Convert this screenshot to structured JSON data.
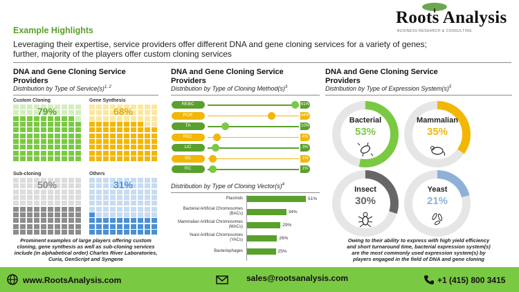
{
  "header": {
    "section_title": "Example Highlights",
    "subtitle_line1": "Leveraging their expertise, service providers offer different DNA and gene cloning services for a variety of genes;",
    "subtitle_line2": "further, majority of the players offer custom cloning services"
  },
  "logo": {
    "name": "Roots Analysis",
    "tagline": "BUSINESS RESEARCH & CONSULTING"
  },
  "panels": {
    "services": {
      "title_line1": "DNA and Gene Cloning Service",
      "title_line2": "Providers",
      "subtitle": "Distribution by Type of Service(s)",
      "sup": "1, 2",
      "items": [
        {
          "label": "Custom Cloning",
          "pct": "79%",
          "fraction": 0.79,
          "color": "#7ac943",
          "light": "#d4edc0",
          "text": "#5aa02c"
        },
        {
          "label": "Gene Synthesis",
          "pct": "68%",
          "fraction": 0.68,
          "color": "#f2b705",
          "light": "#fbe7a3",
          "text": "#e0a800"
        },
        {
          "label": "Sub-cloning",
          "pct": "50%",
          "fraction": 0.5,
          "color": "#8c8c8c",
          "light": "#dcdcdc",
          "text": "#888888"
        },
        {
          "label": "Others",
          "pct": "31%",
          "fraction": 0.31,
          "color": "#4a8fd4",
          "light": "#c7dcf2",
          "text": "#4a8fd4"
        }
      ],
      "note_line1": "Prominent examples of large players offering custom",
      "note_line2": "cloning, gene synthesis  as well as sub-cloning services",
      "note_line3": "include (in alphabetical order) Charles River Laboratories,",
      "note_line4": "Curia, GenScript  and Syngene"
    },
    "methods": {
      "title_line1": "DNA and Gene Cloning Service",
      "title_line2": "Providers",
      "subtitle": "Distribution by Type of Cloning Method(s)",
      "sup": "3",
      "rows": [
        {
          "label": "REBC",
          "value": "61%",
          "fraction": 0.61,
          "dot": "#7ac943"
        },
        {
          "label": "PCR",
          "value": "44%",
          "fraction": 0.44,
          "dot": "#f2b705"
        },
        {
          "label": "TA",
          "value": "10%",
          "fraction": 0.1,
          "dot": "#7ac943"
        },
        {
          "label": "REC",
          "value": "4%",
          "fraction": 0.04,
          "dot": "#f2b705"
        },
        {
          "label": "LIC",
          "value": "3%",
          "fraction": 0.03,
          "dot": "#7ac943"
        },
        {
          "label": "SC",
          "value": "1%",
          "fraction": 0.01,
          "dot": "#f2b705"
        },
        {
          "label": "RC",
          "value": "1%",
          "fraction": 0.01,
          "dot": "#7ac943"
        }
      ]
    },
    "vectors": {
      "subtitle": "Distribution by Type of Cloning Vector(s)",
      "sup": "4",
      "rows": [
        {
          "label1": "Plasmids",
          "label2": "",
          "value": "51%",
          "fraction": 0.51
        },
        {
          "label1": "Bacterial Artificial Chromosomes",
          "label2": "(BACs)",
          "value": "34%",
          "fraction": 0.34
        },
        {
          "label1": "Mammalian Artificial Chromosomes",
          "label2": "(MACs)",
          "value": "29%",
          "fraction": 0.29
        },
        {
          "label1": "Yeast Artificial Chromosomes",
          "label2": "(YACs)",
          "value": "26%",
          "fraction": 0.26
        },
        {
          "label1": "Bacteriophages",
          "label2": "",
          "value": "25%",
          "fraction": 0.25
        }
      ]
    },
    "expression": {
      "title_line1": "DNA and Gene Cloning Service",
      "title_line2": "Providers",
      "subtitle": "Distribution by Type of Expression System(s)",
      "sup": "5",
      "donuts": [
        {
          "label": "Bacterial",
          "pct": "53%",
          "fraction": 0.53,
          "color": "#7ac943",
          "track": "#e6e6e6",
          "icon": "bacteria-icon"
        },
        {
          "label": "Mammalian",
          "pct": "35%",
          "fraction": 0.35,
          "color": "#f2b705",
          "track": "#e6e6e6",
          "icon": "mouse-icon"
        },
        {
          "label": "Insect",
          "pct": "30%",
          "fraction": 0.3,
          "color": "#666666",
          "track": "#e6e6e6",
          "icon": "insect-icon"
        },
        {
          "label": "Yeast",
          "pct": "21%",
          "fraction": 0.21,
          "color": "#8fb0d8",
          "track": "#e6e6e6",
          "icon": "yeast-icon"
        }
      ],
      "note_line1": "Owing to their ability to express  with high yield efficiency",
      "note_line2": "and short turnaround time, bacterial expression system(s)",
      "note_line3": "are the most commonly used expression system(s)  by",
      "note_line4": "players engaged in the field of DNA and gene cloning"
    }
  },
  "footer": {
    "website": "www.RootsAnalysis.com",
    "email": "sales@rootsanalysis.com",
    "phone": "+1 (415) 800 3415"
  }
}
